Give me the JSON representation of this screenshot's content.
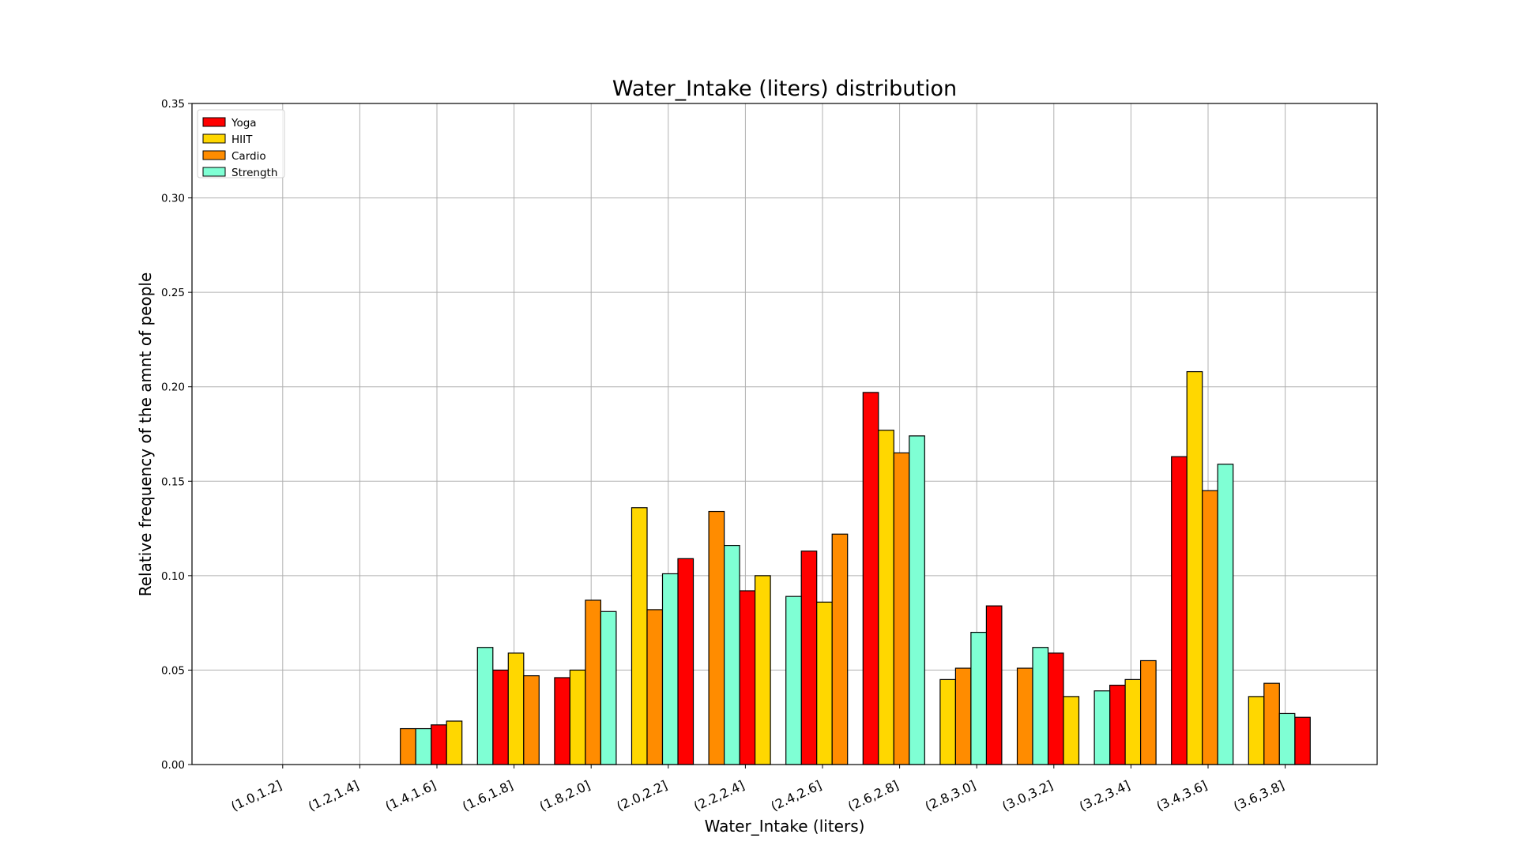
{
  "chart_data": {
    "type": "bar",
    "title": "Water_Intake (liters) distribution",
    "xlabel": "Water_Intake (liters)",
    "ylabel": "Relative frequency of the amnt of people",
    "ylim": [
      0,
      0.35
    ],
    "yticks": [
      "0.00",
      "0.05",
      "0.10",
      "0.15",
      "0.20",
      "0.25",
      "0.30",
      "0.35"
    ],
    "grid": true,
    "legend_position": "top-left",
    "categories": [
      "(1.0,1.2]",
      "(1.2,1.4]",
      "(1.4,1.6]",
      "(1.6,1.8]",
      "(1.8,2.0]",
      "(2.0,2.2]",
      "(2.2,2.4]",
      "(2.4,2.6]",
      "(2.6,2.8]",
      "(2.8,3.0]",
      "(3.0,3.2]",
      "(3.2,3.4]",
      "(3.4,3.6]",
      "(3.6,3.8]"
    ],
    "series": [
      {
        "name": "Yoga",
        "color": "#ff0000",
        "values": [
          0.0,
          0.0,
          0.021,
          0.05,
          0.046,
          0.109,
          0.092,
          0.113,
          0.197,
          0.084,
          0.059,
          0.042,
          0.163,
          0.025
        ]
      },
      {
        "name": "HIIT",
        "color": "#ffd700",
        "values": [
          0.0,
          0.0,
          0.023,
          0.059,
          0.05,
          0.136,
          0.1,
          0.086,
          0.177,
          0.045,
          0.036,
          0.045,
          0.208,
          0.036
        ]
      },
      {
        "name": "Cardio",
        "color": "#ff8c00",
        "values": [
          0.0,
          0.0,
          0.019,
          0.047,
          0.087,
          0.082,
          0.134,
          0.122,
          0.165,
          0.051,
          0.051,
          0.055,
          0.145,
          0.043
        ]
      },
      {
        "name": "Strength",
        "color": "#7fffd4",
        "values": [
          0.0,
          0.0,
          0.019,
          0.062,
          0.081,
          0.101,
          0.116,
          0.089,
          0.174,
          0.07,
          0.062,
          0.039,
          0.159,
          0.027
        ]
      }
    ]
  }
}
